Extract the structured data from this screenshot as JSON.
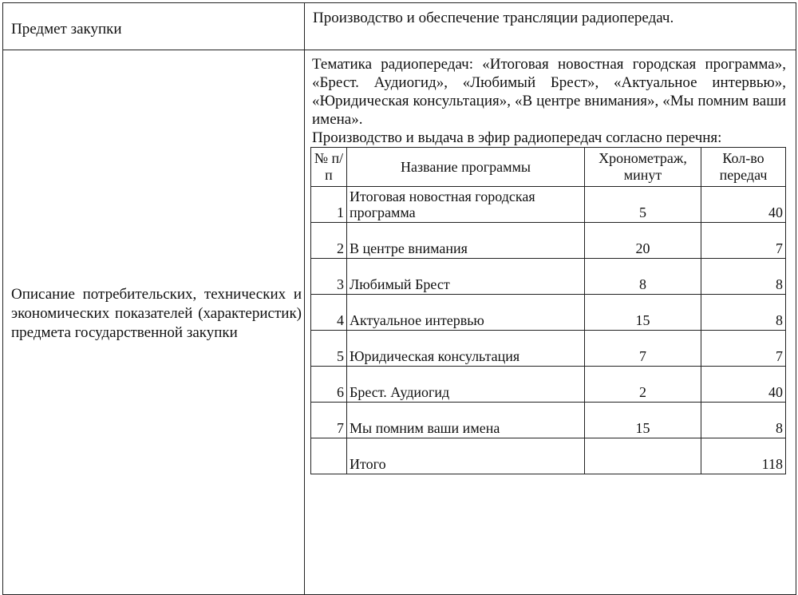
{
  "subject": {
    "label": "Предмет закупки",
    "value": "Производство и обеспечение трансляции радиопередач."
  },
  "description": {
    "label": "Описание потребительских, технических и экономических показателей (характеристик) предмета государственной закупки",
    "themes": "Тематика радиопередач: «Итоговая новостная городская программа», «Брест. Аудиогид», «Любимый Брест», «Актуальное интервью», «Юридическая консультация», «В центре внимания», «Мы помним ваши имена».",
    "intro": "Производство и выдача в эфир радиопередач согласно перечня:",
    "table": {
      "headers": {
        "num": "№ п/п",
        "name": "Название программы",
        "duration": "Хронометраж, минут",
        "count": "Кол-во передач"
      },
      "rows": [
        {
          "num": "1",
          "name": "Итоговая новостная городская программа",
          "duration": "5",
          "count": "40"
        },
        {
          "num": "2",
          "name": "В центре внимания",
          "duration": "20",
          "count": "7"
        },
        {
          "num": "3",
          "name": "Любимый Брест",
          "duration": "8",
          "count": "8"
        },
        {
          "num": "4",
          "name": "Актуальное интервью",
          "duration": "15",
          "count": "8"
        },
        {
          "num": "5",
          "name": "Юридическая консультация",
          "duration": "7",
          "count": "7"
        },
        {
          "num": "6",
          "name": "Брест. Аудиогид",
          "duration": "2",
          "count": "40"
        },
        {
          "num": "7",
          "name": "Мы помним ваши имена",
          "duration": "15",
          "count": "8"
        }
      ],
      "total": {
        "label": "Итого",
        "count": "118"
      }
    }
  }
}
